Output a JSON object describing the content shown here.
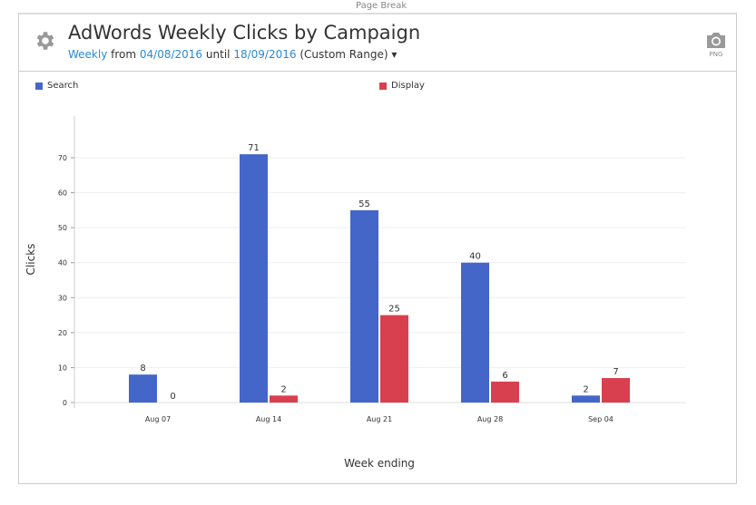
{
  "page_break": "Page Break",
  "header": {
    "title": "AdWords Weekly Clicks by Campaign",
    "period": "Weekly",
    "from": "from",
    "start": "04/08/2016",
    "until": "until",
    "end": "18/09/2016",
    "range": "(Custom Range)",
    "export": "PNG"
  },
  "colors": {
    "search": "#4466c8",
    "display": "#d9404f"
  },
  "chart_data": {
    "type": "bar",
    "title": "AdWords Weekly Clicks by Campaign",
    "xlabel": "Week ending",
    "ylabel": "Clicks",
    "ylim": [
      0,
      70
    ],
    "yticks": [
      0,
      10,
      20,
      30,
      40,
      50,
      60,
      70
    ],
    "categories": [
      "Aug 07",
      "Aug 14",
      "Aug 21",
      "Aug 28",
      "Sep 04"
    ],
    "series": [
      {
        "name": "Search",
        "values": [
          8,
          71,
          55,
          40,
          2
        ]
      },
      {
        "name": "Display",
        "values": [
          0,
          2,
          25,
          6,
          7
        ]
      }
    ],
    "legend": "top",
    "grid": true
  }
}
